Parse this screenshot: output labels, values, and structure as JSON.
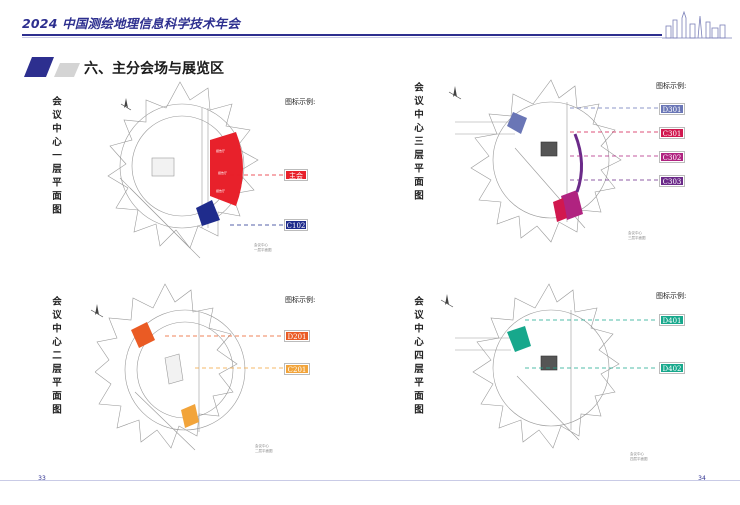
{
  "header": {
    "title": "2024 中国测绘地理信息科学技术年会"
  },
  "section": {
    "title": "六、主分会场与展览区"
  },
  "floors": [
    {
      "title": "会议中心一层平面图",
      "legend_title": "图标示例:",
      "legend": [
        {
          "label": "主会场",
          "color": "#e8212b"
        },
        {
          "label": "C102",
          "color": "#1f2c8c"
        }
      ],
      "note": [
        "会议中心",
        "一层平面图"
      ]
    },
    {
      "title": "会议中心三层平面图",
      "legend_title": "图标示例:",
      "legend": [
        {
          "label": "D301",
          "color": "#6a76b6"
        },
        {
          "label": "C301",
          "color": "#d1184f"
        },
        {
          "label": "C302",
          "color": "#b02380"
        },
        {
          "label": "C303",
          "color": "#6b2a89"
        }
      ],
      "note": [
        "会议中心",
        "三层平面图"
      ]
    },
    {
      "title": "会议中心二层平面图",
      "legend_title": "图标示例:",
      "legend": [
        {
          "label": "D201",
          "color": "#ea5b24"
        },
        {
          "label": "C201",
          "color": "#f2a43a"
        }
      ],
      "note": [
        "会议中心",
        "二层平面图"
      ]
    },
    {
      "title": "会议中心四层平面图",
      "legend_title": "图标示例:",
      "legend": [
        {
          "label": "D401",
          "color": "#17a88c"
        },
        {
          "label": "D402",
          "color": "#17a88c"
        }
      ],
      "note": [
        "会议中心",
        "四层平面图"
      ]
    }
  ],
  "pages": {
    "left": "33",
    "right": "34"
  }
}
